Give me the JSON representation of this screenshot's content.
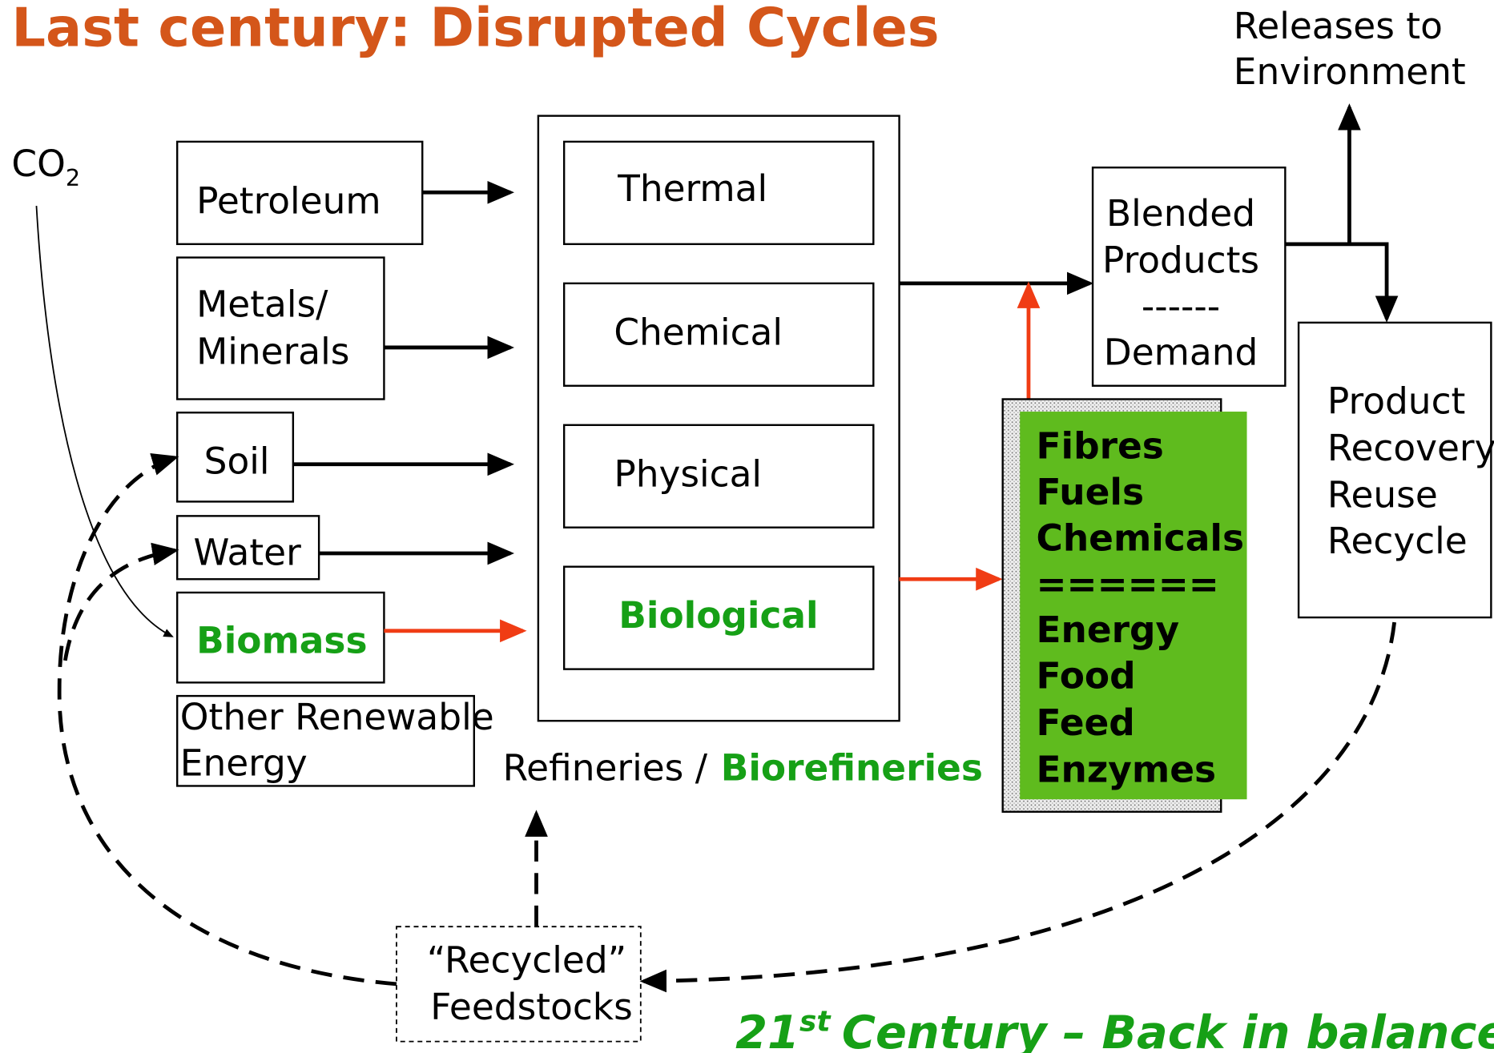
{
  "title": "Last century:  Disrupted Cycles",
  "co2": {
    "base": "CO",
    "sub": "2"
  },
  "sources": [
    {
      "lines": [
        "Petroleum"
      ]
    },
    {
      "lines": [
        "Metals/",
        "Minerals"
      ]
    },
    {
      "lines": [
        "Soil"
      ]
    },
    {
      "lines": [
        "Water"
      ]
    },
    {
      "lines": [
        "Biomass"
      ]
    },
    {
      "lines": [
        "Other Renewable",
        "Energy"
      ]
    }
  ],
  "processes": [
    "Thermal",
    "Chemical",
    "Physical",
    "Biological"
  ],
  "refineries_label": [
    "Refineries /",
    "Biorefineries"
  ],
  "blended": [
    "Blended",
    "Products",
    "------",
    "Demand"
  ],
  "products": [
    "Fibres",
    "Fuels",
    "Chemicals",
    "======",
    "Energy",
    "Food",
    "Feed",
    "Enzymes"
  ],
  "releases": [
    "Releases to",
    "Environment"
  ],
  "recovery": [
    "Product",
    "Recovery",
    "Reuse",
    "Recycle"
  ],
  "recycled": [
    "“Recycled”",
    "Feedstocks"
  ],
  "footer": {
    "prefix": "21",
    "sup": "st",
    "rest": "Century – Back in balance"
  }
}
